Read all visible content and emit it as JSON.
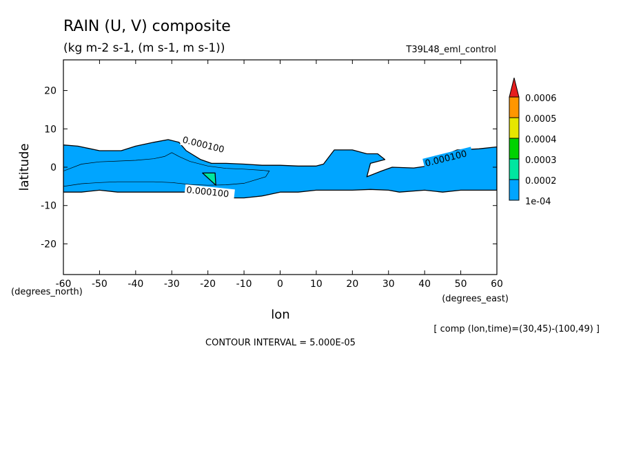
{
  "chart_data": {
    "type": "contour",
    "title": "RAIN (U, V) composite",
    "subtitle": "(kg m-2 s-1, (m s-1, m s-1))",
    "run_label": "T39L48_eml_control",
    "xlabel": "lon",
    "ylabel": "latitude",
    "x_unit_label": "(degrees_east)",
    "y_unit_label": "(degrees_north)",
    "xlim": [
      -60,
      60
    ],
    "ylim": [
      -28,
      28
    ],
    "x_ticks": [
      -60,
      -50,
      -40,
      -30,
      -20,
      -10,
      0,
      10,
      20,
      30,
      40,
      50,
      60
    ],
    "y_ticks": [
      20,
      10,
      0,
      -10,
      -20
    ],
    "tick_labels_x": [
      "-60",
      "-50",
      "-40",
      "-30",
      "-20",
      "-10",
      "0",
      "10",
      "20",
      "30",
      "40",
      "50",
      "60"
    ],
    "tick_labels_y": [
      "20",
      "10",
      "0",
      "-10",
      "-20"
    ],
    "contour_interval_text": "CONTOUR INTERVAL = 5.000E-05",
    "composite_text": "[ comp (lon,time)=(30,45)-(100,49) ]",
    "contour_labels": [
      "0.000100",
      "0.000100",
      "0.000100"
    ],
    "colorbar": {
      "levels": [
        "1e-04",
        "0.0002",
        "0.0003",
        "0.0004",
        "0.0005",
        "0.0006"
      ],
      "colors": [
        "#00a5ff",
        "#00e6a0",
        "#00d200",
        "#e6e600",
        "#ff9600",
        "#e61e1e"
      ]
    },
    "regions": [
      {
        "level": "1e-04",
        "color": "#00a5ff",
        "outline": [
          [
            -60,
            5.8
          ],
          [
            -56,
            5.5
          ],
          [
            -50,
            4.3
          ],
          [
            -44,
            4.3
          ],
          [
            -40,
            5.5
          ],
          [
            -35,
            6.5
          ],
          [
            -31,
            7.2
          ],
          [
            -28,
            6.5
          ],
          [
            -26,
            4.3
          ],
          [
            -22,
            2.0
          ],
          [
            -19,
            1.0
          ],
          [
            -15,
            1.0
          ],
          [
            -10,
            0.8
          ],
          [
            -5,
            0.5
          ],
          [
            0,
            0.5
          ],
          [
            5,
            0.3
          ],
          [
            10,
            0.3
          ],
          [
            12,
            0.8
          ],
          [
            14,
            3.3
          ],
          [
            15,
            4.5
          ],
          [
            20,
            4.5
          ],
          [
            24,
            3.5
          ],
          [
            27,
            3.5
          ],
          [
            29,
            2.0
          ],
          [
            25,
            1.0
          ],
          [
            24,
            -2.5
          ],
          [
            28,
            -1.0
          ],
          [
            31,
            0.0
          ],
          [
            37,
            -0.2
          ],
          [
            40,
            0.2
          ],
          [
            45,
            3.0
          ],
          [
            49,
            4.5
          ],
          [
            55,
            4.8
          ],
          [
            60,
            5.3
          ],
          [
            60,
            -6.0
          ],
          [
            50,
            -6.0
          ],
          [
            45,
            -6.5
          ],
          [
            40,
            -6.0
          ],
          [
            33,
            -6.5
          ],
          [
            30,
            -6.0
          ],
          [
            25,
            -5.8
          ],
          [
            20,
            -6.0
          ],
          [
            15,
            -6.0
          ],
          [
            10,
            -6.0
          ],
          [
            5,
            -6.5
          ],
          [
            0,
            -6.5
          ],
          [
            -5,
            -7.5
          ],
          [
            -10,
            -8.0
          ],
          [
            -15,
            -8.0
          ],
          [
            -20,
            -7.5
          ],
          [
            -25,
            -6.5
          ],
          [
            -30,
            -6.5
          ],
          [
            -35,
            -6.5
          ],
          [
            -40,
            -6.5
          ],
          [
            -45,
            -6.5
          ],
          [
            -50,
            -6.0
          ],
          [
            -55,
            -6.5
          ],
          [
            -60,
            -6.5
          ]
        ]
      },
      {
        "level": "0.0002",
        "color": "#00e6a0",
        "outline": [
          [
            -21.5,
            -1.5
          ],
          [
            -18,
            -1.5
          ],
          [
            -17.8,
            -4.7
          ]
        ]
      }
    ],
    "contours": [
      [
        [
          -60,
          -1.0
        ],
        [
          -55,
          0.8
        ],
        [
          -50,
          1.4
        ],
        [
          -45,
          1.6
        ],
        [
          -40,
          1.8
        ],
        [
          -35,
          2.2
        ],
        [
          -32,
          2.8
        ],
        [
          -30,
          3.8
        ],
        [
          -28,
          2.8
        ],
        [
          -25,
          1.5
        ],
        [
          -20,
          0.3
        ],
        [
          -15,
          -0.3
        ],
        [
          -10,
          -0.5
        ],
        [
          -5,
          -0.8
        ],
        [
          -3,
          -1.0
        ],
        [
          -4,
          -2.5
        ],
        [
          -10,
          -4.2
        ],
        [
          -15,
          -4.6
        ],
        [
          -20,
          -4.7
        ],
        [
          -25,
          -4.5
        ],
        [
          -30,
          -4.0
        ],
        [
          -35,
          -3.8
        ],
        [
          -40,
          -3.8
        ],
        [
          -45,
          -3.8
        ],
        [
          -50,
          -4.0
        ],
        [
          -55,
          -4.3
        ],
        [
          -60,
          -5.0
        ]
      ]
    ]
  }
}
